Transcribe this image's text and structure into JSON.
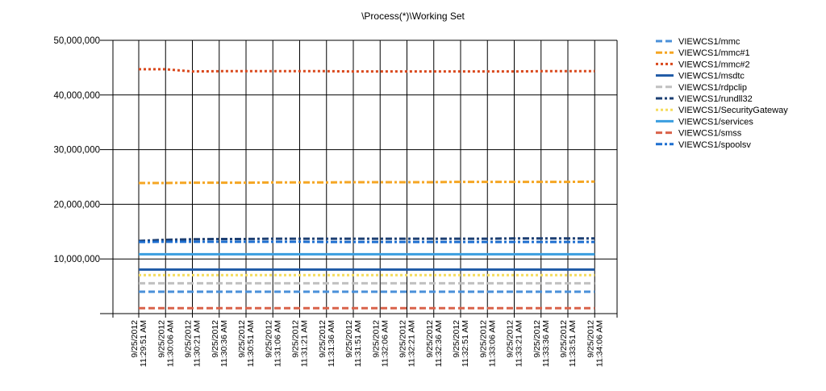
{
  "chart_data": {
    "type": "line",
    "title": "\\Process(*)\\Working Set",
    "xlabel": "",
    "ylabel": "",
    "ylim": [
      0,
      50000000
    ],
    "yticks": [
      {
        "value": 10000000,
        "label": "10,000,000"
      },
      {
        "value": 20000000,
        "label": "20,000,000"
      },
      {
        "value": 30000000,
        "label": "30,000,000"
      },
      {
        "value": 40000000,
        "label": "40,000,000"
      },
      {
        "value": 50000000,
        "label": "50,000,000"
      }
    ],
    "grid": true,
    "legend_position": "right",
    "categories": [
      "9/25/2012 11:29:51 AM",
      "9/25/2012 11:30:06 AM",
      "9/25/2012 11:30:21 AM",
      "9/25/2012 11:30:36 AM",
      "9/25/2012 11:30:51 AM",
      "9/25/2012 11:31:06 AM",
      "9/25/2012 11:31:21 AM",
      "9/25/2012 11:31:36 AM",
      "9/25/2012 11:31:51 AM",
      "9/25/2012 11:32:06 AM",
      "9/25/2012 11:32:21 AM",
      "9/25/2012 11:32:36 AM",
      "9/25/2012 11:32:51 AM",
      "9/25/2012 11:33:06 AM",
      "9/25/2012 11:33:21 AM",
      "9/25/2012 11:33:36 AM",
      "9/25/2012 11:33:51 AM",
      "9/25/2012 11:34:06 AM"
    ],
    "series": [
      {
        "name": "VIEWCS1/mmc",
        "color": "#4a90d9",
        "dash": "dash",
        "values": [
          4000000,
          4000000,
          4000000,
          4000000,
          4000000,
          4000000,
          4000000,
          4000000,
          4000000,
          4000000,
          4000000,
          4000000,
          4000000,
          4000000,
          4000000,
          4000000,
          4000000,
          4000000
        ]
      },
      {
        "name": "VIEWCS1/mmc#1",
        "color": "#f5a623",
        "dash": "dashdot",
        "values": [
          23900000,
          23900000,
          23950000,
          23950000,
          23950000,
          24000000,
          24000000,
          24000000,
          24050000,
          24050000,
          24050000,
          24050000,
          24100000,
          24100000,
          24100000,
          24100000,
          24100000,
          24150000
        ]
      },
      {
        "name": "VIEWCS1/mmc#2",
        "color": "#d9481c",
        "dash": "dot",
        "values": [
          44700000,
          44700000,
          44300000,
          44350000,
          44350000,
          44350000,
          44350000,
          44350000,
          44300000,
          44300000,
          44300000,
          44300000,
          44300000,
          44300000,
          44300000,
          44350000,
          44350000,
          44350000
        ]
      },
      {
        "name": "VIEWCS1/msdtc",
        "color": "#1f5aa6",
        "dash": "solid",
        "values": [
          8050000,
          8050000,
          8050000,
          8050000,
          8050000,
          8050000,
          8050000,
          8050000,
          8050000,
          8050000,
          8050000,
          8050000,
          8050000,
          8050000,
          8050000,
          8050000,
          8050000,
          8050000
        ]
      },
      {
        "name": "VIEWCS1/rdpclip",
        "color": "#c0c0c0",
        "dash": "dash",
        "values": [
          5550000,
          5550000,
          5550000,
          5550000,
          5550000,
          5550000,
          5550000,
          5550000,
          5550000,
          5550000,
          5550000,
          5550000,
          5550000,
          5550000,
          5550000,
          5550000,
          5550000,
          5550000
        ]
      },
      {
        "name": "VIEWCS1/rundll32",
        "color": "#1c3f73",
        "dash": "dashdot",
        "values": [
          13300000,
          13500000,
          13600000,
          13650000,
          13650000,
          13700000,
          13700000,
          13700000,
          13700000,
          13700000,
          13700000,
          13700000,
          13700000,
          13700000,
          13750000,
          13750000,
          13750000,
          13750000
        ]
      },
      {
        "name": "VIEWCS1/SecurityGateway",
        "color": "#f5dc5c",
        "dash": "dot",
        "values": [
          7050000,
          7050000,
          7050000,
          7050000,
          7050000,
          7050000,
          7050000,
          7050000,
          7050000,
          7050000,
          7050000,
          7050000,
          7050000,
          7050000,
          7050000,
          7050000,
          7050000,
          7050000
        ]
      },
      {
        "name": "VIEWCS1/services",
        "color": "#3a9ee0",
        "dash": "solid",
        "values": [
          10850000,
          10850000,
          10850000,
          10850000,
          10850000,
          10850000,
          10850000,
          10850000,
          10850000,
          10850000,
          10850000,
          10850000,
          10850000,
          10850000,
          10850000,
          10850000,
          10850000,
          10850000
        ]
      },
      {
        "name": "VIEWCS1/smss",
        "color": "#d9624a",
        "dash": "dash",
        "values": [
          1000000,
          1000000,
          1000000,
          1000000,
          1000000,
          1000000,
          1000000,
          1000000,
          1000000,
          1000000,
          1000000,
          1000000,
          1000000,
          1000000,
          1000000,
          1000000,
          1000000,
          1000000
        ]
      },
      {
        "name": "VIEWCS1/spoolsv",
        "color": "#1e6fd0",
        "dash": "dashdot",
        "values": [
          13100000,
          13150000,
          13150000,
          13150000,
          13150000,
          13150000,
          13150000,
          13100000,
          13100000,
          13100000,
          13100000,
          13100000,
          13100000,
          13100000,
          13100000,
          13100000,
          13100000,
          13100000
        ]
      }
    ]
  }
}
